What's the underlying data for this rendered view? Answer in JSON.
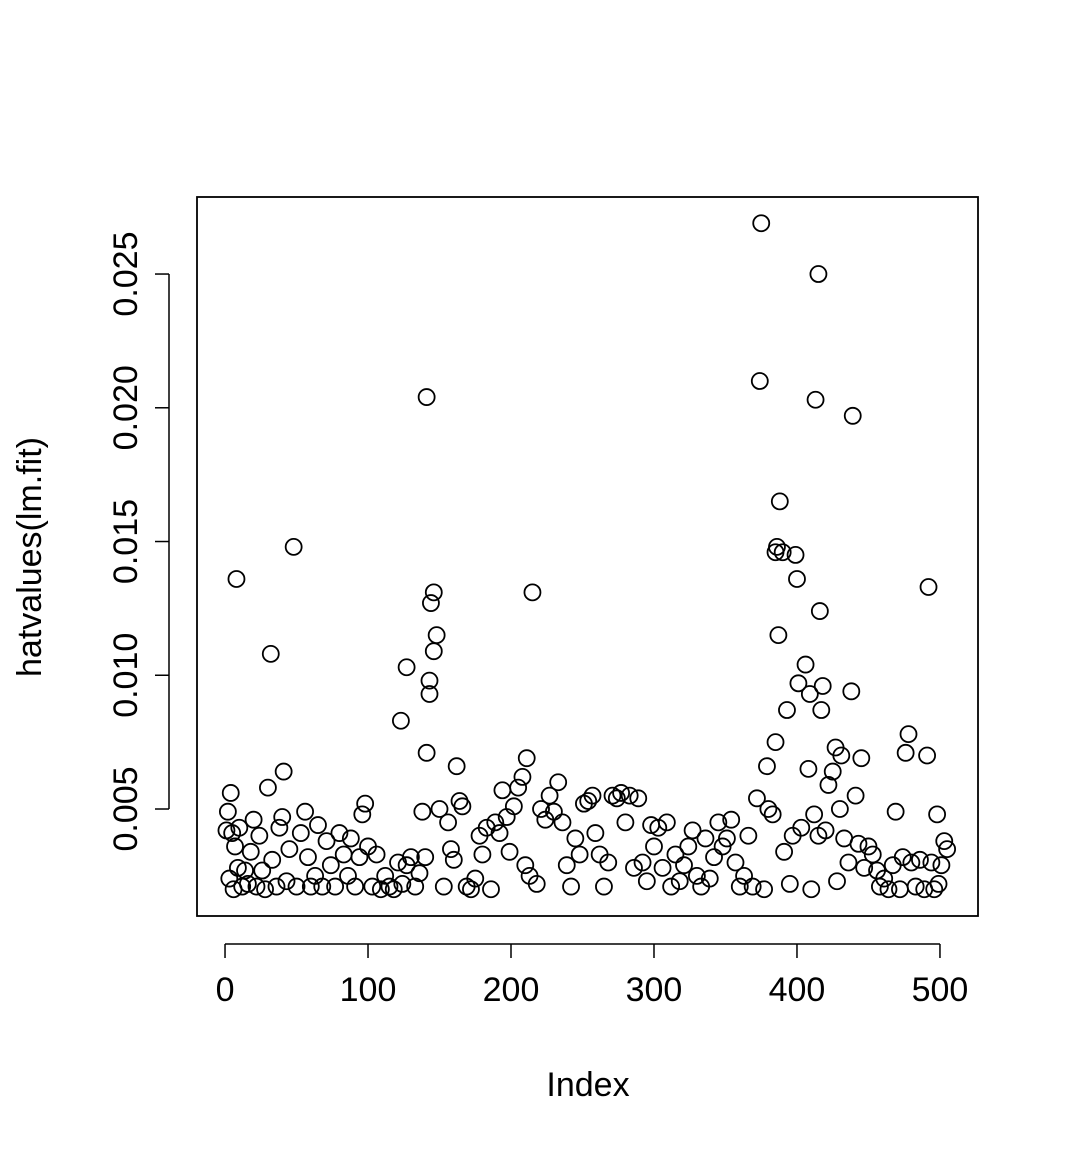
{
  "chart_data": {
    "type": "scatter",
    "x_label": "Index",
    "y_label": "hatvalues(lm.fit)",
    "xlim": [
      -19.6,
      526.6
    ],
    "ylim": [
      0.001,
      0.02788
    ],
    "xticks": [
      0,
      100,
      200,
      300,
      400,
      500
    ],
    "yticks": [
      0.005,
      {
        "value": 0.01,
        "label": "0.010"
      },
      0.015,
      {
        "value": 0.02,
        "label": "0.020"
      },
      0.025
    ],
    "color": "#000000",
    "grid": false,
    "x": [
      1,
      2,
      3,
      5,
      6,
      7,
      9,
      10,
      12,
      14,
      16,
      18,
      20,
      22,
      24,
      26,
      28,
      33,
      36,
      38,
      40,
      43,
      45,
      50,
      53,
      56,
      58,
      60,
      63,
      65,
      68,
      71,
      74,
      77,
      80,
      83,
      86,
      88,
      91,
      94,
      96,
      98,
      100,
      103,
      106,
      109,
      112,
      115,
      118,
      121,
      124,
      127,
      130,
      133,
      136,
      138,
      140,
      150,
      153,
      156,
      158,
      160,
      164,
      166,
      169,
      172,
      175,
      178,
      180,
      183,
      186,
      189,
      192,
      194,
      197,
      199,
      202,
      205,
      208,
      210,
      213,
      218,
      221,
      224,
      227,
      230,
      233,
      236,
      239,
      242,
      245,
      248,
      251,
      254,
      257,
      259,
      262,
      265,
      268,
      271,
      274,
      277,
      280,
      283,
      286,
      289,
      292,
      295,
      298,
      300,
      303,
      306,
      309,
      312,
      315,
      318,
      321,
      324,
      327,
      330,
      333,
      336,
      339,
      342,
      345,
      348,
      351,
      354,
      357,
      360,
      363,
      366,
      369,
      372,
      377,
      380,
      383,
      391,
      395,
      397,
      403,
      410,
      412,
      415,
      420,
      422,
      425,
      428,
      430,
      433,
      436,
      441,
      443,
      447,
      450,
      453,
      456,
      458,
      461,
      464,
      467,
      472,
      474,
      480,
      483,
      486,
      489,
      494,
      496,
      499,
      501,
      503,
      505,
      4,
      8,
      32,
      48,
      41,
      30,
      141,
      146,
      144,
      148,
      146,
      143,
      143,
      127,
      123,
      141,
      215,
      211,
      162,
      375,
      374,
      415,
      413,
      439,
      388,
      386,
      385,
      390,
      399,
      400,
      416,
      387,
      492,
      406,
      401,
      409,
      418,
      417,
      438,
      393,
      385,
      379,
      408,
      427,
      431,
      445,
      478,
      476,
      491,
      469,
      498
    ],
    "values": [
      0.0042,
      0.0049,
      0.0024,
      0.0041,
      0.002,
      0.0036,
      0.0028,
      0.0043,
      0.0021,
      0.0027,
      0.0022,
      0.0034,
      0.0046,
      0.0021,
      0.004,
      0.0027,
      0.002,
      0.0031,
      0.0021,
      0.0043,
      0.0047,
      0.0023,
      0.0035,
      0.0021,
      0.0041,
      0.0049,
      0.0032,
      0.0021,
      0.0025,
      0.0044,
      0.0021,
      0.0038,
      0.0029,
      0.0021,
      0.0041,
      0.0033,
      0.0025,
      0.0039,
      0.0021,
      0.0032,
      0.0048,
      0.0052,
      0.0036,
      0.0021,
      0.0033,
      0.002,
      0.0025,
      0.0021,
      0.002,
      0.003,
      0.0022,
      0.0029,
      0.0032,
      0.0021,
      0.0026,
      0.0049,
      0.0032,
      0.005,
      0.0021,
      0.0045,
      0.0035,
      0.0031,
      0.0053,
      0.0051,
      0.0021,
      0.002,
      0.0024,
      0.004,
      0.0033,
      0.0043,
      0.002,
      0.0045,
      0.0041,
      0.0057,
      0.0047,
      0.0034,
      0.0051,
      0.0058,
      0.0062,
      0.0029,
      0.0025,
      0.0022,
      0.005,
      0.0046,
      0.0055,
      0.0049,
      0.006,
      0.0045,
      0.0029,
      0.0021,
      0.0039,
      0.0033,
      0.0052,
      0.0053,
      0.0055,
      0.0041,
      0.0033,
      0.0021,
      0.003,
      0.0055,
      0.0054,
      0.0056,
      0.0045,
      0.0055,
      0.0028,
      0.0054,
      0.003,
      0.0023,
      0.0044,
      0.0036,
      0.0043,
      0.0028,
      0.0045,
      0.0021,
      0.0033,
      0.0023,
      0.0029,
      0.0036,
      0.0042,
      0.0025,
      0.0021,
      0.0039,
      0.0024,
      0.0032,
      0.0045,
      0.0036,
      0.0039,
      0.0046,
      0.003,
      0.0021,
      0.0025,
      0.004,
      0.0021,
      0.0054,
      0.002,
      0.005,
      0.0048,
      0.0034,
      0.0022,
      0.004,
      0.0043,
      0.002,
      0.0048,
      0.004,
      0.0042,
      0.0059,
      0.0064,
      0.0023,
      0.005,
      0.0039,
      0.003,
      0.0055,
      0.0037,
      0.0028,
      0.0036,
      0.0033,
      0.0027,
      0.0021,
      0.0024,
      0.002,
      0.0029,
      0.002,
      0.0032,
      0.003,
      0.0021,
      0.0031,
      0.002,
      0.003,
      0.002,
      0.0022,
      0.0029,
      0.0038,
      0.0035,
      0.0056,
      0.0136,
      0.0108,
      0.0148,
      0.0064,
      0.0058,
      0.0204,
      0.0131,
      0.0127,
      0.0115,
      0.0109,
      0.0098,
      0.0093,
      0.0103,
      0.0083,
      0.0071,
      0.0131,
      0.0069,
      0.0066,
      0.0269,
      0.021,
      0.025,
      0.0203,
      0.0197,
      0.0165,
      0.0148,
      0.0146,
      0.0146,
      0.0145,
      0.0136,
      0.0124,
      0.0115,
      0.0133,
      0.0104,
      0.0097,
      0.0093,
      0.0096,
      0.0087,
      0.0094,
      0.0087,
      0.0075,
      0.0066,
      0.0065,
      0.0073,
      0.007,
      0.0069,
      0.0078,
      0.0071,
      0.007,
      0.0049,
      0.0048
    ]
  }
}
